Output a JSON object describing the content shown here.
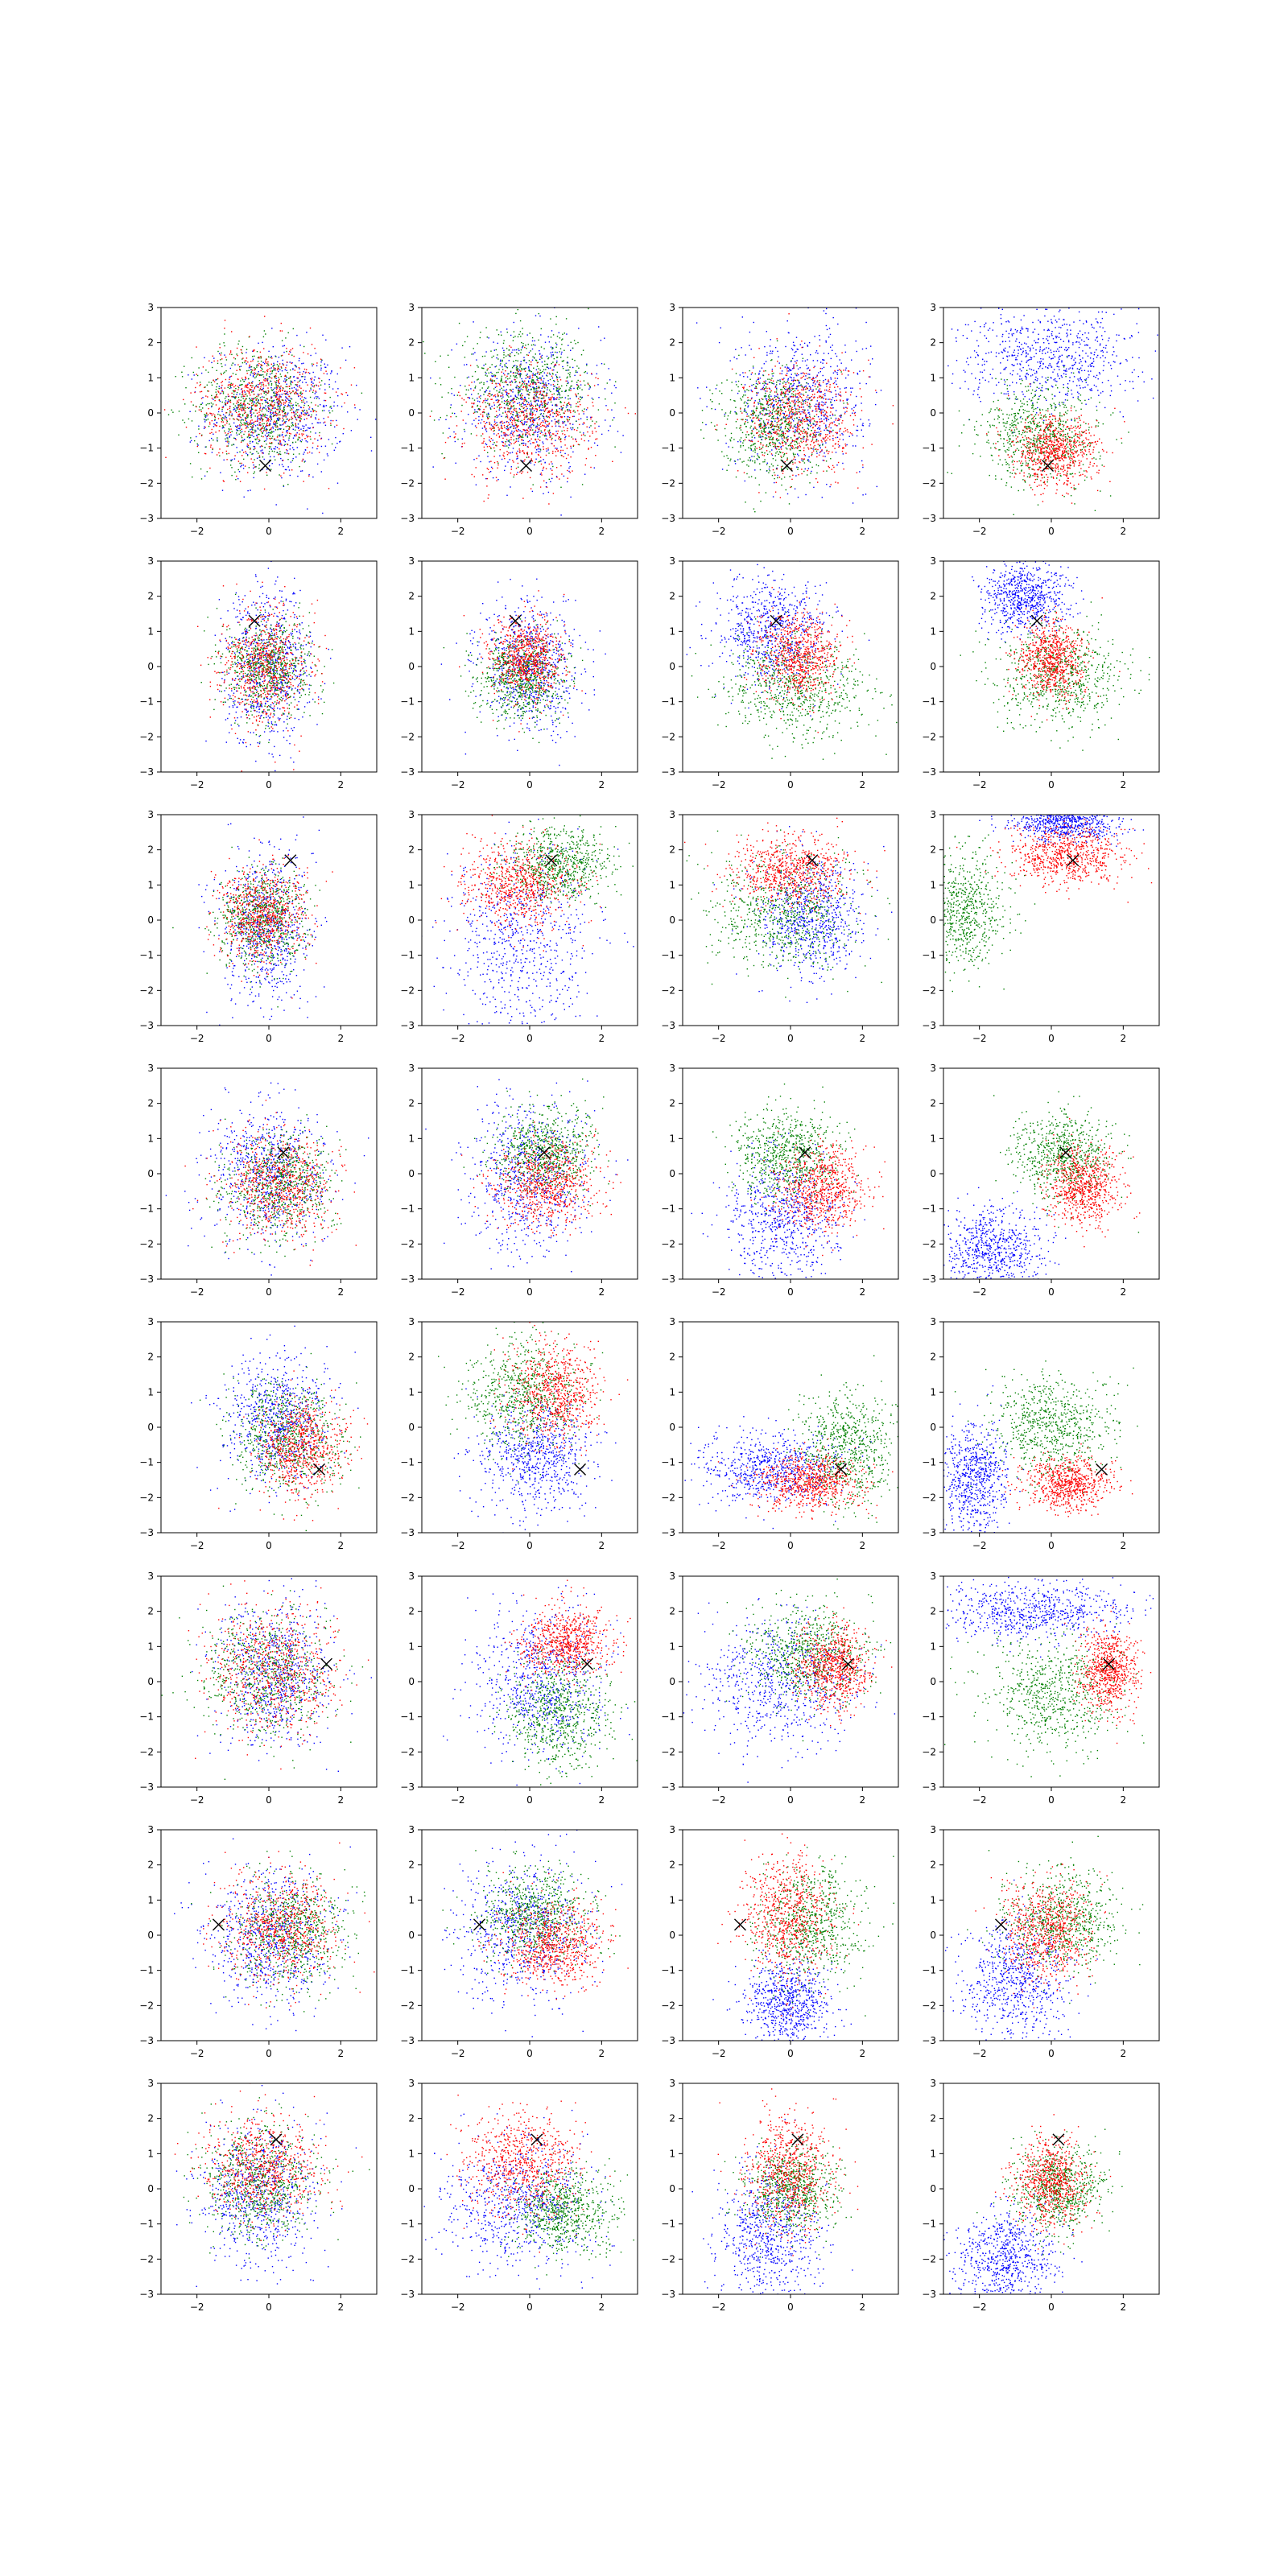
{
  "figure": {
    "rows": 8,
    "cols": 4,
    "colors": {
      "series_a": "#0000ff",
      "series_b": "#ff0000",
      "series_c": "#008000",
      "marker": "#000000"
    }
  },
  "chart_data": {
    "type": "scatter",
    "grid": false,
    "legend": "none",
    "xlim": [
      -3,
      3
    ],
    "ylim": [
      -3,
      3
    ],
    "xticks": [
      "−2",
      "0",
      "2"
    ],
    "yticks": [
      "3",
      "2",
      "1",
      "0",
      "−1",
      "−2",
      "−3"
    ],
    "marker_symbol": "×",
    "series_colors": [
      "#0000ff",
      "#ff0000",
      "#008000"
    ],
    "points_per_series": 700,
    "panels": [
      {
        "row": 1,
        "col": 1,
        "marker": [
          -0.1,
          -1.5
        ],
        "clusters": [
          {
            "color": "#0000ff",
            "mx": 0.2,
            "my": 0.0,
            "sx": 0.95,
            "sy": 0.95
          },
          {
            "color": "#ff0000",
            "mx": -0.2,
            "my": 0.3,
            "sx": 0.9,
            "sy": 0.85
          },
          {
            "color": "#008000",
            "mx": -0.3,
            "my": 0.2,
            "sx": 0.9,
            "sy": 0.85
          }
        ]
      },
      {
        "row": 1,
        "col": 2,
        "marker": [
          -0.1,
          -1.5
        ],
        "clusters": [
          {
            "color": "#0000ff",
            "mx": 0.0,
            "my": 0.2,
            "sx": 1.0,
            "sy": 1.0
          },
          {
            "color": "#ff0000",
            "mx": 0.0,
            "my": -0.3,
            "sx": 0.9,
            "sy": 0.8
          },
          {
            "color": "#008000",
            "mx": -0.1,
            "my": 0.7,
            "sx": 0.95,
            "sy": 0.8
          }
        ]
      },
      {
        "row": 1,
        "col": 3,
        "marker": [
          -0.1,
          -1.5
        ],
        "clusters": [
          {
            "color": "#0000ff",
            "mx": 0.3,
            "my": 0.4,
            "sx": 0.9,
            "sy": 1.0
          },
          {
            "color": "#ff0000",
            "mx": 0.3,
            "my": -0.2,
            "sx": 0.8,
            "sy": 0.8
          },
          {
            "color": "#008000",
            "mx": -0.5,
            "my": -0.3,
            "sx": 0.7,
            "sy": 0.8
          }
        ]
      },
      {
        "row": 1,
        "col": 4,
        "marker": [
          -0.1,
          -1.5
        ],
        "clusters": [
          {
            "color": "#0000ff",
            "mx": 0.0,
            "my": 1.6,
            "sx": 1.2,
            "sy": 0.7
          },
          {
            "color": "#ff0000",
            "mx": 0.1,
            "my": -1.1,
            "sx": 0.6,
            "sy": 0.5
          },
          {
            "color": "#008000",
            "mx": -0.3,
            "my": -0.6,
            "sx": 0.8,
            "sy": 0.7
          }
        ]
      },
      {
        "row": 2,
        "col": 1,
        "marker": [
          -0.4,
          1.3
        ],
        "clusters": [
          {
            "color": "#0000ff",
            "mx": 0.0,
            "my": 0.0,
            "sx": 0.6,
            "sy": 1.1
          },
          {
            "color": "#ff0000",
            "mx": -0.1,
            "my": 0.0,
            "sx": 0.6,
            "sy": 0.8
          },
          {
            "color": "#008000",
            "mx": 0.0,
            "my": 0.0,
            "sx": 0.6,
            "sy": 0.7
          }
        ]
      },
      {
        "row": 2,
        "col": 2,
        "marker": [
          -0.4,
          1.3
        ],
        "clusters": [
          {
            "color": "#0000ff",
            "mx": 0.0,
            "my": 0.0,
            "sx": 0.7,
            "sy": 0.9
          },
          {
            "color": "#ff0000",
            "mx": -0.1,
            "my": 0.2,
            "sx": 0.5,
            "sy": 0.6
          },
          {
            "color": "#008000",
            "mx": -0.2,
            "my": -0.3,
            "sx": 0.6,
            "sy": 0.6
          }
        ]
      },
      {
        "row": 2,
        "col": 3,
        "marker": [
          -0.4,
          1.3
        ],
        "clusters": [
          {
            "color": "#0000ff",
            "mx": -0.5,
            "my": 1.0,
            "sx": 0.8,
            "sy": 0.8
          },
          {
            "color": "#ff0000",
            "mx": 0.2,
            "my": 0.3,
            "sx": 0.55,
            "sy": 0.6
          },
          {
            "color": "#008000",
            "mx": 0.2,
            "my": -0.6,
            "sx": 1.0,
            "sy": 0.7
          }
        ]
      },
      {
        "row": 2,
        "col": 4,
        "marker": [
          -0.4,
          1.3
        ],
        "clusters": [
          {
            "color": "#0000ff",
            "mx": -0.7,
            "my": 2.0,
            "sx": 0.6,
            "sy": 0.5
          },
          {
            "color": "#ff0000",
            "mx": 0.0,
            "my": 0.2,
            "sx": 0.45,
            "sy": 0.55
          },
          {
            "color": "#008000",
            "mx": 0.2,
            "my": -0.3,
            "sx": 0.9,
            "sy": 0.7
          }
        ]
      },
      {
        "row": 3,
        "col": 1,
        "marker": [
          0.6,
          1.7
        ],
        "clusters": [
          {
            "color": "#0000ff",
            "mx": -0.1,
            "my": -0.2,
            "sx": 0.6,
            "sy": 1.1
          },
          {
            "color": "#ff0000",
            "mx": -0.2,
            "my": 0.1,
            "sx": 0.6,
            "sy": 0.7
          },
          {
            "color": "#008000",
            "mx": -0.2,
            "my": 0.0,
            "sx": 0.6,
            "sy": 0.7
          }
        ]
      },
      {
        "row": 3,
        "col": 2,
        "marker": [
          0.6,
          1.7
        ],
        "clusters": [
          {
            "color": "#0000ff",
            "mx": -0.2,
            "my": -0.6,
            "sx": 1.0,
            "sy": 1.4
          },
          {
            "color": "#ff0000",
            "mx": -0.3,
            "my": 1.0,
            "sx": 0.8,
            "sy": 0.6
          },
          {
            "color": "#008000",
            "mx": 0.8,
            "my": 1.6,
            "sx": 0.7,
            "sy": 0.5
          }
        ]
      },
      {
        "row": 3,
        "col": 3,
        "marker": [
          0.6,
          1.7
        ],
        "clusters": [
          {
            "color": "#0000ff",
            "mx": 0.6,
            "my": 0.1,
            "sx": 0.7,
            "sy": 0.8
          },
          {
            "color": "#ff0000",
            "mx": 0.0,
            "my": 1.4,
            "sx": 0.8,
            "sy": 0.5
          },
          {
            "color": "#008000",
            "mx": -0.2,
            "my": 0.2,
            "sx": 1.0,
            "sy": 0.8
          }
        ]
      },
      {
        "row": 3,
        "col": 4,
        "marker": [
          0.6,
          1.7
        ],
        "clusters": [
          {
            "color": "#0000ff",
            "mx": 0.4,
            "my": 2.8,
            "sx": 0.7,
            "sy": 0.3
          },
          {
            "color": "#ff0000",
            "mx": 0.5,
            "my": 1.8,
            "sx": 0.8,
            "sy": 0.4
          },
          {
            "color": "#008000",
            "mx": -2.5,
            "my": 0.2,
            "sx": 0.6,
            "sy": 0.8
          }
        ]
      },
      {
        "row": 4,
        "col": 1,
        "marker": [
          0.4,
          0.6
        ],
        "clusters": [
          {
            "color": "#0000ff",
            "mx": 0.0,
            "my": 0.0,
            "sx": 0.85,
            "sy": 1.0
          },
          {
            "color": "#ff0000",
            "mx": 0.3,
            "my": -0.3,
            "sx": 0.75,
            "sy": 0.75
          },
          {
            "color": "#008000",
            "mx": 0.3,
            "my": -0.3,
            "sx": 0.75,
            "sy": 0.75
          }
        ]
      },
      {
        "row": 4,
        "col": 2,
        "marker": [
          0.4,
          0.6
        ],
        "clusters": [
          {
            "color": "#0000ff",
            "mx": 0.0,
            "my": 0.0,
            "sx": 0.85,
            "sy": 1.1
          },
          {
            "color": "#ff0000",
            "mx": 0.5,
            "my": -0.3,
            "sx": 0.7,
            "sy": 0.6
          },
          {
            "color": "#008000",
            "mx": 0.4,
            "my": 0.6,
            "sx": 0.7,
            "sy": 0.6
          }
        ]
      },
      {
        "row": 4,
        "col": 3,
        "marker": [
          0.4,
          0.6
        ],
        "clusters": [
          {
            "color": "#0000ff",
            "mx": -0.2,
            "my": -1.3,
            "sx": 0.8,
            "sy": 0.9
          },
          {
            "color": "#ff0000",
            "mx": 0.9,
            "my": -0.4,
            "sx": 0.6,
            "sy": 0.6
          },
          {
            "color": "#008000",
            "mx": -0.1,
            "my": 0.6,
            "sx": 0.7,
            "sy": 0.6
          }
        ]
      },
      {
        "row": 4,
        "col": 4,
        "marker": [
          0.4,
          0.6
        ],
        "clusters": [
          {
            "color": "#0000ff",
            "mx": -1.6,
            "my": -2.2,
            "sx": 0.7,
            "sy": 0.6
          },
          {
            "color": "#ff0000",
            "mx": 0.9,
            "my": -0.4,
            "sx": 0.5,
            "sy": 0.5
          },
          {
            "color": "#008000",
            "mx": 0.3,
            "my": 0.5,
            "sx": 0.7,
            "sy": 0.6
          }
        ]
      },
      {
        "row": 5,
        "col": 1,
        "marker": [
          1.4,
          -1.2
        ],
        "clusters": [
          {
            "color": "#0000ff",
            "mx": 0.2,
            "my": 0.2,
            "sx": 0.7,
            "sy": 0.9
          },
          {
            "color": "#ff0000",
            "mx": 0.9,
            "my": -0.6,
            "sx": 0.6,
            "sy": 0.7
          },
          {
            "color": "#008000",
            "mx": 0.5,
            "my": -0.3,
            "sx": 0.8,
            "sy": 0.8
          }
        ]
      },
      {
        "row": 5,
        "col": 2,
        "marker": [
          1.4,
          -1.2
        ],
        "clusters": [
          {
            "color": "#0000ff",
            "mx": 0.2,
            "my": -0.9,
            "sx": 0.8,
            "sy": 0.8
          },
          {
            "color": "#ff0000",
            "mx": 0.7,
            "my": 1.0,
            "sx": 0.6,
            "sy": 0.7
          },
          {
            "color": "#008000",
            "mx": -0.2,
            "my": 0.9,
            "sx": 0.8,
            "sy": 0.8
          }
        ]
      },
      {
        "row": 5,
        "col": 3,
        "marker": [
          1.4,
          -1.2
        ],
        "clusters": [
          {
            "color": "#0000ff",
            "mx": -0.6,
            "my": -1.2,
            "sx": 1.0,
            "sy": 0.5
          },
          {
            "color": "#ff0000",
            "mx": 0.6,
            "my": -1.6,
            "sx": 0.7,
            "sy": 0.4
          },
          {
            "color": "#008000",
            "mx": 1.6,
            "my": -0.6,
            "sx": 0.6,
            "sy": 0.8
          }
        ]
      },
      {
        "row": 5,
        "col": 4,
        "marker": [
          1.4,
          -1.2
        ],
        "clusters": [
          {
            "color": "#0000ff",
            "mx": -2.2,
            "my": -1.5,
            "sx": 0.5,
            "sy": 0.8
          },
          {
            "color": "#ff0000",
            "mx": 0.5,
            "my": -1.6,
            "sx": 0.6,
            "sy": 0.35
          },
          {
            "color": "#008000",
            "mx": 0.0,
            "my": 0.0,
            "sx": 0.8,
            "sy": 0.7
          }
        ]
      },
      {
        "row": 6,
        "col": 1,
        "marker": [
          1.6,
          0.5
        ],
        "clusters": [
          {
            "color": "#0000ff",
            "mx": 0.1,
            "my": 0.2,
            "sx": 0.8,
            "sy": 1.0
          },
          {
            "color": "#ff0000",
            "mx": 0.1,
            "my": 0.3,
            "sx": 0.9,
            "sy": 0.9
          },
          {
            "color": "#008000",
            "mx": -0.1,
            "my": 0.2,
            "sx": 0.9,
            "sy": 0.9
          }
        ]
      },
      {
        "row": 6,
        "col": 2,
        "marker": [
          1.6,
          0.5
        ],
        "clusters": [
          {
            "color": "#0000ff",
            "mx": 0.3,
            "my": 0.0,
            "sx": 0.9,
            "sy": 1.0
          },
          {
            "color": "#ff0000",
            "mx": 1.0,
            "my": 1.1,
            "sx": 0.6,
            "sy": 0.5
          },
          {
            "color": "#008000",
            "mx": 0.8,
            "my": -0.9,
            "sx": 0.7,
            "sy": 0.8
          }
        ]
      },
      {
        "row": 6,
        "col": 3,
        "marker": [
          1.6,
          0.5
        ],
        "clusters": [
          {
            "color": "#0000ff",
            "mx": -0.3,
            "my": 0.0,
            "sx": 1.1,
            "sy": 0.9
          },
          {
            "color": "#ff0000",
            "mx": 1.2,
            "my": 0.4,
            "sx": 0.5,
            "sy": 0.6
          },
          {
            "color": "#008000",
            "mx": 0.5,
            "my": 0.8,
            "sx": 0.8,
            "sy": 0.7
          }
        ]
      },
      {
        "row": 6,
        "col": 4,
        "marker": [
          1.6,
          0.5
        ],
        "clusters": [
          {
            "color": "#0000ff",
            "mx": -0.5,
            "my": 2.0,
            "sx": 1.3,
            "sy": 0.4
          },
          {
            "color": "#ff0000",
            "mx": 1.6,
            "my": 0.3,
            "sx": 0.4,
            "sy": 0.6
          },
          {
            "color": "#008000",
            "mx": 0.0,
            "my": -0.3,
            "sx": 0.9,
            "sy": 0.8
          }
        ]
      },
      {
        "row": 7,
        "col": 1,
        "marker": [
          -1.4,
          0.3
        ],
        "clusters": [
          {
            "color": "#0000ff",
            "mx": 0.0,
            "my": 0.0,
            "sx": 0.85,
            "sy": 1.0
          },
          {
            "color": "#ff0000",
            "mx": 0.4,
            "my": 0.2,
            "sx": 0.8,
            "sy": 0.8
          },
          {
            "color": "#008000",
            "mx": 0.6,
            "my": 0.1,
            "sx": 0.8,
            "sy": 0.8
          }
        ]
      },
      {
        "row": 7,
        "col": 2,
        "marker": [
          -1.4,
          0.3
        ],
        "clusters": [
          {
            "color": "#0000ff",
            "mx": -0.2,
            "my": 0.2,
            "sx": 0.9,
            "sy": 1.0
          },
          {
            "color": "#ff0000",
            "mx": 0.7,
            "my": -0.3,
            "sx": 0.7,
            "sy": 0.6
          },
          {
            "color": "#008000",
            "mx": 0.1,
            "my": 0.6,
            "sx": 0.8,
            "sy": 0.7
          }
        ]
      },
      {
        "row": 7,
        "col": 3,
        "marker": [
          -1.4,
          0.3
        ],
        "clusters": [
          {
            "color": "#0000ff",
            "mx": -0.1,
            "my": -1.9,
            "sx": 0.6,
            "sy": 0.6
          },
          {
            "color": "#ff0000",
            "mx": -0.1,
            "my": 0.6,
            "sx": 0.6,
            "sy": 0.9
          },
          {
            "color": "#008000",
            "mx": 0.6,
            "my": 0.3,
            "sx": 0.7,
            "sy": 0.8
          }
        ]
      },
      {
        "row": 7,
        "col": 4,
        "marker": [
          -1.4,
          0.3
        ],
        "clusters": [
          {
            "color": "#0000ff",
            "mx": -1.0,
            "my": -1.3,
            "sx": 0.7,
            "sy": 0.9
          },
          {
            "color": "#ff0000",
            "mx": -0.1,
            "my": 0.1,
            "sx": 0.6,
            "sy": 0.7
          },
          {
            "color": "#008000",
            "mx": 0.3,
            "my": 0.4,
            "sx": 0.8,
            "sy": 0.7
          }
        ]
      },
      {
        "row": 8,
        "col": 1,
        "marker": [
          0.2,
          1.4
        ],
        "clusters": [
          {
            "color": "#0000ff",
            "mx": -0.3,
            "my": -0.2,
            "sx": 0.8,
            "sy": 1.0
          },
          {
            "color": "#ff0000",
            "mx": -0.2,
            "my": 0.6,
            "sx": 0.8,
            "sy": 0.7
          },
          {
            "color": "#008000",
            "mx": -0.3,
            "my": 0.2,
            "sx": 0.8,
            "sy": 0.8
          }
        ]
      },
      {
        "row": 8,
        "col": 2,
        "marker": [
          0.2,
          1.4
        ],
        "clusters": [
          {
            "color": "#0000ff",
            "mx": -0.3,
            "my": -0.5,
            "sx": 1.0,
            "sy": 0.9
          },
          {
            "color": "#ff0000",
            "mx": -0.2,
            "my": 0.7,
            "sx": 0.8,
            "sy": 0.7
          },
          {
            "color": "#008000",
            "mx": 1.0,
            "my": -0.6,
            "sx": 0.7,
            "sy": 0.6
          }
        ]
      },
      {
        "row": 8,
        "col": 3,
        "marker": [
          0.2,
          1.4
        ],
        "clusters": [
          {
            "color": "#0000ff",
            "mx": -0.6,
            "my": -1.3,
            "sx": 0.7,
            "sy": 0.9
          },
          {
            "color": "#ff0000",
            "mx": 0.0,
            "my": 0.5,
            "sx": 0.6,
            "sy": 0.8
          },
          {
            "color": "#008000",
            "mx": 0.0,
            "my": 0.0,
            "sx": 0.6,
            "sy": 0.6
          }
        ]
      },
      {
        "row": 8,
        "col": 4,
        "marker": [
          0.2,
          1.4
        ],
        "clusters": [
          {
            "color": "#0000ff",
            "mx": -1.3,
            "my": -2.0,
            "sx": 0.7,
            "sy": 0.7
          },
          {
            "color": "#ff0000",
            "mx": 0.0,
            "my": 0.2,
            "sx": 0.5,
            "sy": 0.6
          },
          {
            "color": "#008000",
            "mx": 0.2,
            "my": 0.0,
            "sx": 0.6,
            "sy": 0.6
          }
        ]
      }
    ]
  }
}
